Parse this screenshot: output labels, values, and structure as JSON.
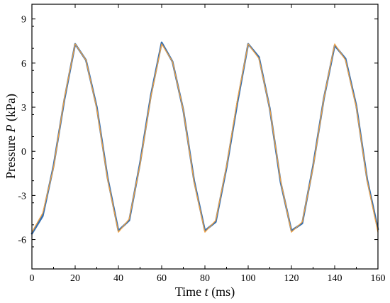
{
  "chart_data": {
    "type": "line",
    "xlabel": {
      "prefix": "Time ",
      "var": "t",
      "suffix": " (ms)"
    },
    "ylabel": {
      "prefix": "Pressure ",
      "var": "P",
      "suffix": " (kPa)"
    },
    "xlim": [
      0,
      160
    ],
    "ylim": [
      -8,
      10
    ],
    "x_ticks": [
      0,
      20,
      40,
      60,
      80,
      100,
      120,
      140,
      160
    ],
    "x_tick_labels": [
      "0",
      "20",
      "40",
      "60",
      "80",
      "100",
      "120",
      "140",
      "160"
    ],
    "y_ticks": [
      -6,
      -3,
      0,
      3,
      6,
      9
    ],
    "y_tick_labels": [
      "-6",
      "-3",
      "0",
      "3",
      "6",
      "9"
    ],
    "grid": false,
    "legend": "none",
    "series": [
      {
        "style": "noisy measured signal",
        "color": "#1f5fa8",
        "x": [
          0,
          5,
          10,
          15,
          20,
          25,
          30,
          35,
          40,
          45,
          50,
          55,
          60,
          65,
          70,
          75,
          80,
          85,
          90,
          95,
          100,
          105,
          110,
          115,
          120,
          125,
          130,
          135,
          140,
          145,
          150,
          155,
          160
        ],
        "y": [
          -5.6,
          -4.4,
          -1.0,
          3.5,
          7.3,
          6.2,
          3.0,
          -1.8,
          -5.4,
          -4.7,
          -0.8,
          3.8,
          7.4,
          6.1,
          2.8,
          -2.0,
          -5.4,
          -4.8,
          -1.1,
          3.3,
          7.3,
          6.4,
          2.9,
          -2.1,
          -5.4,
          -4.9,
          -1.0,
          3.6,
          7.2,
          6.3,
          3.1,
          -1.9,
          -5.3
        ]
      },
      {
        "style": "smooth fit",
        "color": "#f0a040",
        "x": [
          0,
          5,
          10,
          15,
          20,
          25,
          30,
          35,
          40,
          45,
          50,
          55,
          60,
          65,
          70,
          75,
          80,
          85,
          90,
          95,
          100,
          105,
          110,
          115,
          120,
          125,
          130,
          135,
          140,
          145,
          150,
          155,
          160
        ],
        "y": [
          -5.5,
          -4.2,
          -1.1,
          3.6,
          7.3,
          6.2,
          2.9,
          -1.9,
          -5.5,
          -4.6,
          -0.9,
          3.7,
          7.3,
          6.1,
          2.8,
          -2.1,
          -5.5,
          -4.7,
          -1.0,
          3.5,
          7.3,
          6.3,
          2.9,
          -2.0,
          -5.5,
          -4.8,
          -1.1,
          3.6,
          7.3,
          6.2,
          3.0,
          -2.0,
          -5.5
        ]
      }
    ]
  }
}
